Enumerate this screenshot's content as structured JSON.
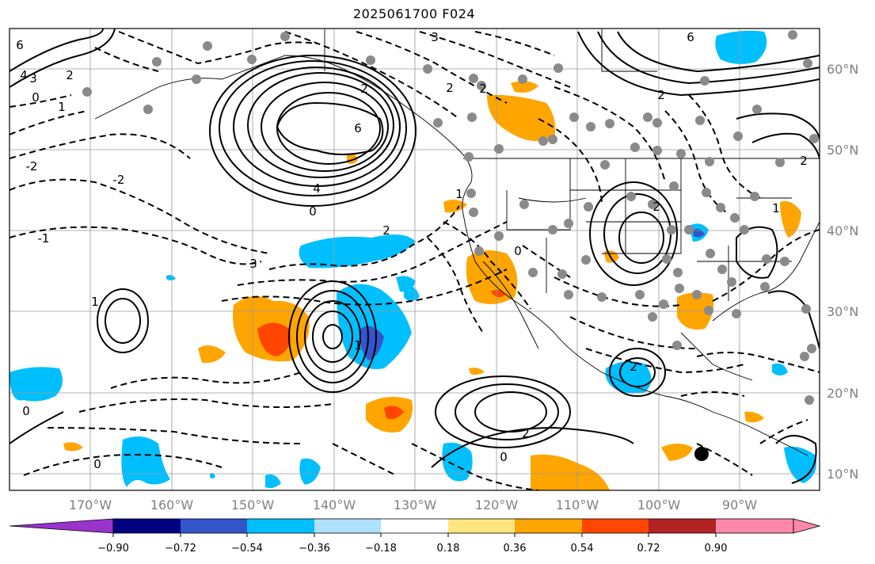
{
  "title": "2025061700 F024",
  "map": {
    "lon_labels": [
      "170°W",
      "160°W",
      "150°W",
      "140°W",
      "130°W",
      "120°W",
      "110°W",
      "100°W",
      "90°W"
    ],
    "lat_labels": [
      "60°N",
      "50°N",
      "40°N",
      "30°N",
      "20°N",
      "10°N"
    ],
    "contour_labels": [
      "6",
      "3",
      "4",
      "2",
      "-2",
      "0",
      "6",
      "4",
      "1",
      "2",
      "-1",
      "0",
      "3",
      "2",
      "0",
      "1",
      "2",
      "-2",
      "1",
      "2",
      "3",
      "6",
      "2",
      "2",
      "0",
      "2",
      "1",
      "0",
      "0",
      "1",
      "2",
      "2"
    ],
    "station_marker_large": "black-dot"
  },
  "colorbar": {
    "ticks": [
      "−0.90",
      "−0.72",
      "−0.54",
      "−0.36",
      "−0.18",
      "0.18",
      "0.36",
      "0.54",
      "0.72",
      "0.90"
    ],
    "colors": [
      "#9933cc",
      "#000080",
      "#3355cc",
      "#00bfff",
      "#aee0ff",
      "#ffffff",
      "#ffe680",
      "#ffa500",
      "#ff4500",
      "#b22222",
      "#ff88aa"
    ]
  }
}
